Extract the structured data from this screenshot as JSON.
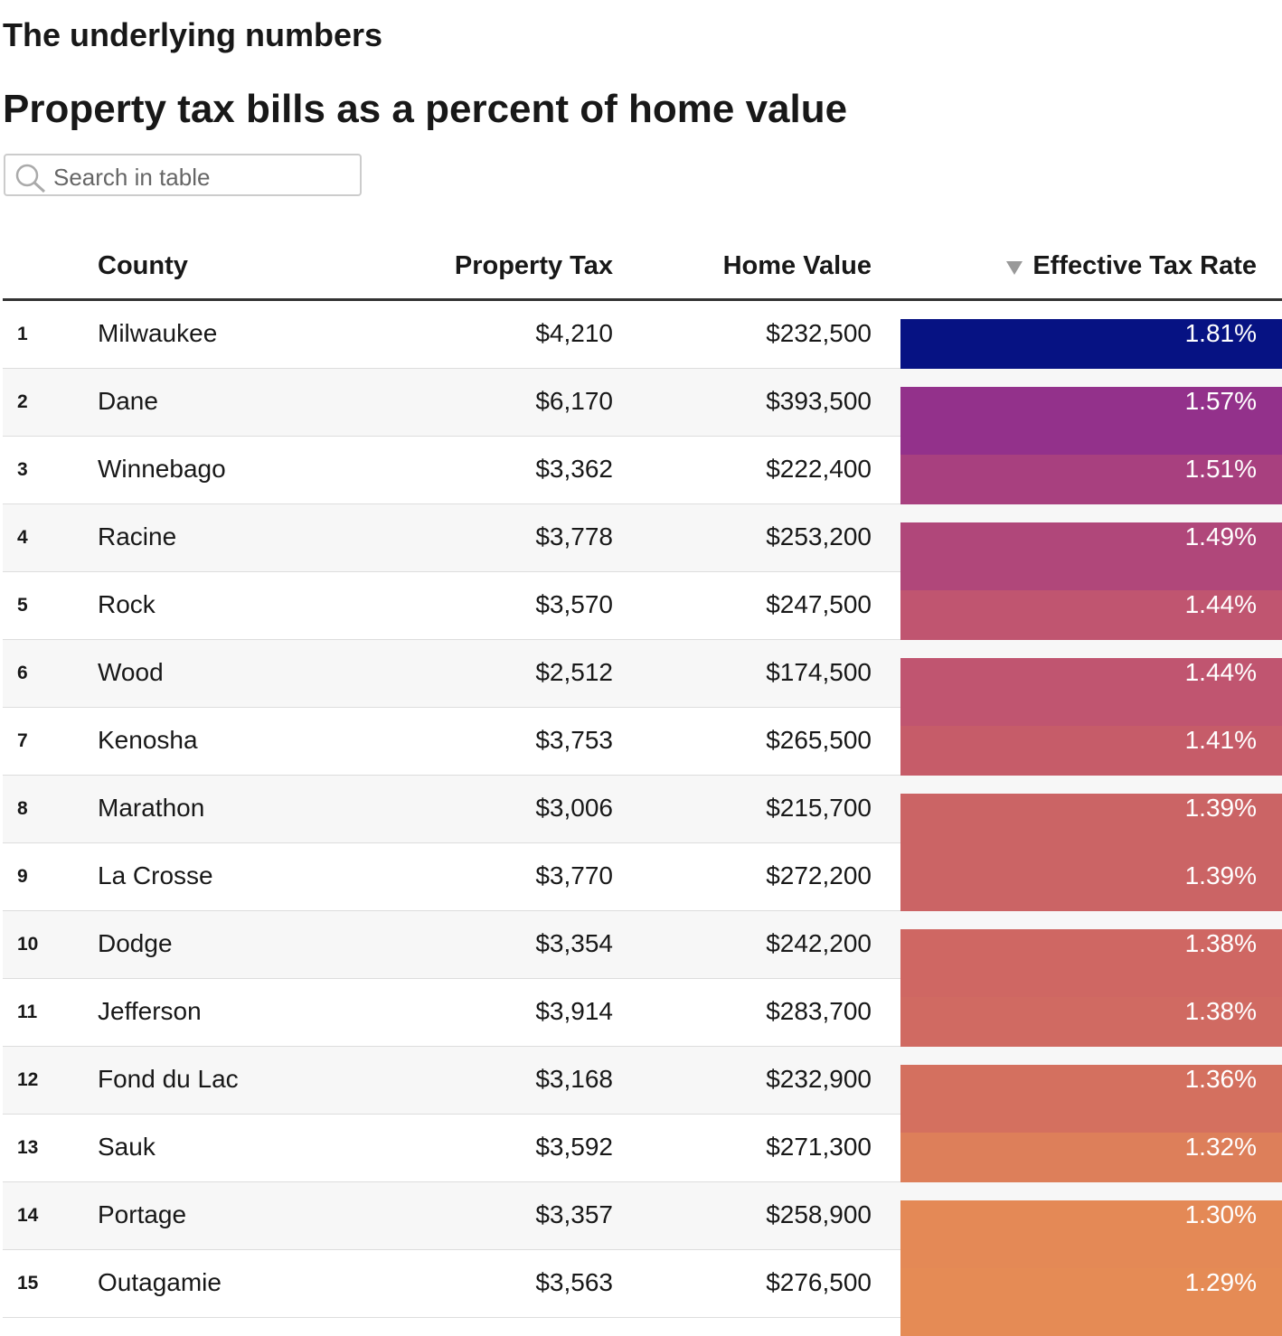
{
  "header": {
    "kicker": "The underlying numbers",
    "title": "Property tax bills as a percent of home value"
  },
  "search": {
    "placeholder": "Search in table"
  },
  "table": {
    "columns": [
      "County",
      "Property Tax",
      "Home Value",
      "Effective Tax Rate"
    ],
    "rows": [
      [
        "1",
        "Milwaukee",
        "$4,210",
        "$232,500",
        "1.81%"
      ],
      [
        "2",
        "Dane",
        "$6,170",
        "$393,500",
        "1.57%"
      ],
      [
        "3",
        "Winnebago",
        "$3,362",
        "$222,400",
        "1.51%"
      ],
      [
        "4",
        "Racine",
        "$3,778",
        "$253,200",
        "1.49%"
      ],
      [
        "5",
        "Rock",
        "$3,570",
        "$247,500",
        "1.44%"
      ],
      [
        "6",
        "Wood",
        "$2,512",
        "$174,500",
        "1.44%"
      ],
      [
        "7",
        "Kenosha",
        "$3,753",
        "$265,500",
        "1.41%"
      ],
      [
        "8",
        "Marathon",
        "$3,006",
        "$215,700",
        "1.39%"
      ],
      [
        "9",
        "La Crosse",
        "$3,770",
        "$272,200",
        "1.39%"
      ],
      [
        "10",
        "Dodge",
        "$3,354",
        "$242,200",
        "1.38%"
      ],
      [
        "11",
        "Jefferson",
        "$3,914",
        "$283,700",
        "1.38%"
      ],
      [
        "12",
        "Fond du Lac",
        "$3,168",
        "$232,900",
        "1.36%"
      ],
      [
        "13",
        "Sauk",
        "$3,592",
        "$271,300",
        "1.32%"
      ],
      [
        "14",
        "Portage",
        "$3,357",
        "$258,900",
        "1.30%"
      ],
      [
        "15",
        "Outagamie",
        "$3,563",
        "$276,500",
        "1.29%"
      ]
    ],
    "colors": [
      "#061283",
      "#93318b",
      "#a8407f",
      "#b0477a",
      "#c05570",
      "#c05570",
      "#c65c69",
      "#cb6465",
      "#cb6465",
      "#cf6763",
      "#d06a62",
      "#d4705f",
      "#dd7f5a",
      "#e48956",
      "#e58b55"
    ]
  }
}
